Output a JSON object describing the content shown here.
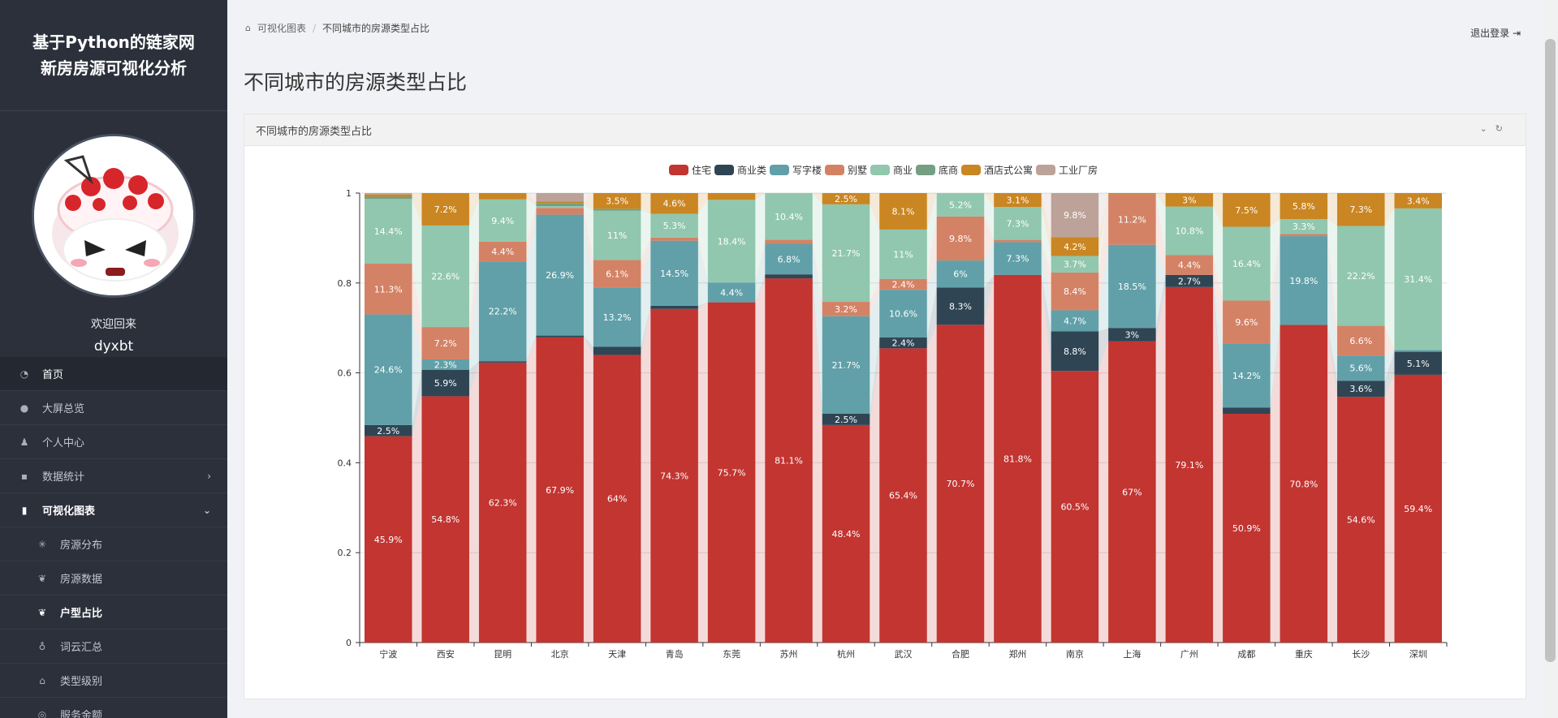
{
  "sidebar": {
    "brand_line1": "基于Python的链家网",
    "brand_line2": "新房房源可视化分析",
    "welcome": "欢迎回来",
    "username": "dyxbt",
    "nav": [
      {
        "label": "首页",
        "icon": "dashboard-icon"
      },
      {
        "label": "大屏总览",
        "icon": "globe-icon"
      },
      {
        "label": "个人中心",
        "icon": "user-icon"
      },
      {
        "label": "数据统计",
        "icon": "grid-icon"
      },
      {
        "label": "可视化图表",
        "icon": "bar-chart-icon"
      }
    ],
    "sub_nav": [
      {
        "label": "房源分布",
        "icon": "asterisk-icon"
      },
      {
        "label": "房源数据",
        "icon": "feather-icon"
      },
      {
        "label": "户型占比",
        "icon": "feather-icon"
      },
      {
        "label": "词云汇总",
        "icon": "lightbulb-icon"
      },
      {
        "label": "类型级别",
        "icon": "graduation-cap-icon"
      },
      {
        "label": "服务金额",
        "icon": "circle-icon"
      }
    ]
  },
  "header": {
    "breadcrumb_home": "可视化图表",
    "breadcrumb_sep": "/",
    "breadcrumb_current": "不同城市的房源类型占比",
    "logout": "退出登录"
  },
  "page_title": "不同城市的房源类型占比",
  "panel_title": "不同城市的房源类型占比",
  "chart_data": {
    "type": "bar",
    "stacked": true,
    "normalized": true,
    "ylim": [
      0,
      1
    ],
    "yticks": [
      "0",
      "0.2",
      "0.4",
      "0.6",
      "0.8",
      "1"
    ],
    "legend_position": "top-center",
    "categories": [
      "宁波",
      "西安",
      "昆明",
      "北京",
      "天津",
      "青岛",
      "东莞",
      "苏州",
      "杭州",
      "武汉",
      "合肥",
      "郑州",
      "南京",
      "上海",
      "广州",
      "成都",
      "重庆",
      "长沙",
      "深圳"
    ],
    "series": [
      {
        "name": "住宅",
        "color": "#c23531",
        "values": [
          45.9,
          54.8,
          62.3,
          67.9,
          64,
          74.3,
          75.7,
          81.1,
          48.4,
          65.4,
          70.7,
          81.8,
          60.5,
          67,
          79.1,
          50.9,
          70.8,
          54.6,
          59.4
        ]
      },
      {
        "name": "商业类",
        "color": "#2f4554",
        "values": [
          2.5,
          5.9,
          0.3,
          0.4,
          1.8,
          0.7,
          0,
          0.9,
          2.5,
          2.4,
          8.3,
          0,
          8.8,
          3,
          2.7,
          1.4,
          0,
          3.6,
          5.1
        ]
      },
      {
        "name": "写字楼",
        "color": "#61a0a8",
        "values": [
          24.6,
          2.3,
          22.2,
          26.9,
          13.2,
          14.5,
          4.4,
          6.8,
          21.7,
          10.6,
          6,
          7.3,
          4.7,
          18.5,
          0,
          14.2,
          19.8,
          5.6,
          0.4
        ]
      },
      {
        "name": "别墅",
        "color": "#d48265",
        "values": [
          11.3,
          7.2,
          4.4,
          1.5,
          6.1,
          0.7,
          0,
          0.9,
          3.2,
          2.4,
          9.8,
          0.5,
          8.4,
          11.2,
          4.4,
          9.6,
          0.5,
          6.6,
          0
        ]
      },
      {
        "name": "商业",
        "color": "#91c7ae",
        "values": [
          14.4,
          22.6,
          9.4,
          0.4,
          11,
          5.3,
          18.4,
          10.4,
          21.7,
          11,
          5.2,
          7.3,
          3.7,
          0,
          10.8,
          16.4,
          3.3,
          22.2,
          31.4
        ]
      },
      {
        "name": "底商",
        "color": "#749f83",
        "values": [
          0.5,
          0,
          0,
          0.7,
          0.4,
          0,
          0,
          0,
          0,
          0,
          0,
          0,
          0,
          0,
          0,
          0,
          0,
          0,
          0
        ]
      },
      {
        "name": "酒店式公寓",
        "color": "#ca8622",
        "values": [
          0.5,
          7.2,
          1.4,
          0.3,
          3.5,
          4.6,
          1.5,
          0,
          2.5,
          8.1,
          0,
          3.1,
          4.2,
          0.3,
          3,
          7.5,
          5.8,
          7.3,
          3.4
        ]
      },
      {
        "name": "工业厂房",
        "color": "#bda29a",
        "values": [
          0.3,
          0,
          0,
          1.9,
          0,
          0,
          0,
          0,
          0,
          0,
          0,
          0,
          9.8,
          0,
          0,
          0,
          0,
          0,
          0
        ]
      }
    ]
  }
}
